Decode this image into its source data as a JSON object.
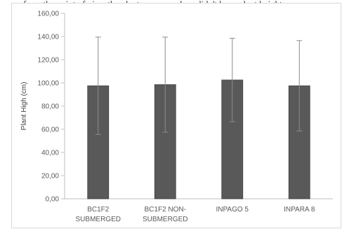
{
  "caption": "a from the point of view the plants were weak or didn't have plant height...",
  "chart_data": {
    "type": "bar",
    "categories": [
      [
        "BC1F2",
        "SUBMERGED"
      ],
      [
        "BC1F2 NON-",
        "SUBMERGED"
      ],
      [
        "INPAGO 5"
      ],
      [
        "INPARA 8"
      ]
    ],
    "values": [
      97.5,
      98.5,
      102.5,
      97.5
    ],
    "error_upper": [
      139.5,
      139.5,
      138.5,
      136.5
    ],
    "error_lower": [
      55.5,
      57.5,
      66.5,
      58.5
    ],
    "ylabel": "Plant High (cm)",
    "xlabel": "",
    "ylim": [
      0,
      160
    ],
    "yticks": [
      "0,00",
      "20,00",
      "40,00",
      "60,00",
      "80,00",
      "100,00",
      "120,00",
      "140,00",
      "160,00"
    ],
    "grid": false,
    "legend": "none",
    "colors": {
      "bar": "#595959",
      "bar_edge": "#404040",
      "error": "#8c8c8c",
      "axis": "#bfbfbf"
    }
  }
}
